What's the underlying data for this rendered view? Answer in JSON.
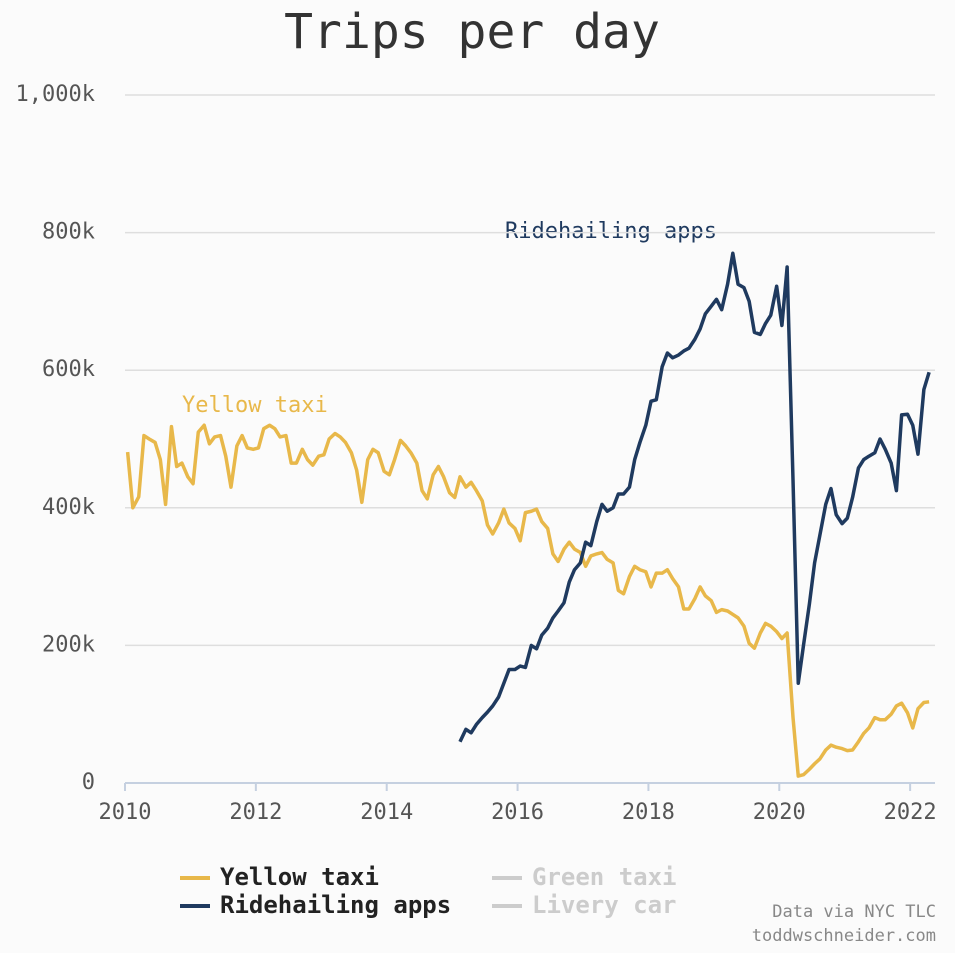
{
  "chart_data": {
    "type": "line",
    "title": "Trips per day",
    "x": [
      2010.04,
      2010.12,
      2010.21,
      2010.29,
      2010.37,
      2010.46,
      2010.54,
      2010.62,
      2010.71,
      2010.79,
      2010.87,
      2010.96,
      2011.04,
      2011.12,
      2011.21,
      2011.29,
      2011.37,
      2011.46,
      2011.54,
      2011.62,
      2011.71,
      2011.79,
      2011.87,
      2011.96,
      2012.04,
      2012.12,
      2012.21,
      2012.29,
      2012.37,
      2012.46,
      2012.54,
      2012.62,
      2012.71,
      2012.79,
      2012.87,
      2012.96,
      2013.04,
      2013.12,
      2013.21,
      2013.29,
      2013.37,
      2013.46,
      2013.54,
      2013.62,
      2013.71,
      2013.79,
      2013.87,
      2013.96,
      2014.04,
      2014.12,
      2014.21,
      2014.29,
      2014.37,
      2014.46,
      2014.54,
      2014.62,
      2014.71,
      2014.79,
      2014.87,
      2014.96,
      2015.04,
      2015.12,
      2015.21,
      2015.29,
      2015.37,
      2015.46,
      2015.54,
      2015.62,
      2015.71,
      2015.79,
      2015.87,
      2015.96,
      2016.04,
      2016.12,
      2016.21,
      2016.29,
      2016.37,
      2016.46,
      2016.54,
      2016.62,
      2016.71,
      2016.79,
      2016.87,
      2016.96,
      2017.04,
      2017.12,
      2017.21,
      2017.29,
      2017.37,
      2017.46,
      2017.54,
      2017.62,
      2017.71,
      2017.79,
      2017.87,
      2017.96,
      2018.04,
      2018.12,
      2018.21,
      2018.29,
      2018.37,
      2018.46,
      2018.54,
      2018.62,
      2018.71,
      2018.79,
      2018.87,
      2018.96,
      2019.04,
      2019.12,
      2019.21,
      2019.29,
      2019.37,
      2019.46,
      2019.54,
      2019.62,
      2019.71,
      2019.79,
      2019.87,
      2019.96,
      2020.04,
      2020.12,
      2020.21,
      2020.29,
      2020.37,
      2020.46,
      2020.54,
      2020.62,
      2020.71,
      2020.79,
      2020.87,
      2020.96,
      2021.04,
      2021.12,
      2021.21,
      2021.29,
      2021.37,
      2021.46,
      2021.54,
      2021.62,
      2021.71,
      2021.79,
      2021.87,
      2021.96,
      2022.04,
      2022.12,
      2022.21,
      2022.29
    ],
    "series": [
      {
        "name": "Yellow taxi",
        "color": "#e8b84a",
        "values": [
          481,
          400,
          416,
          505,
          500,
          495,
          470,
          405,
          518,
          460,
          465,
          445,
          435,
          510,
          520,
          493,
          503,
          505,
          475,
          430,
          490,
          505,
          487,
          485,
          487,
          515,
          520,
          515,
          503,
          505,
          465,
          465,
          485,
          470,
          462,
          475,
          477,
          500,
          508,
          503,
          495,
          480,
          455,
          408,
          470,
          485,
          480,
          453,
          448,
          470,
          498,
          490,
          480,
          465,
          425,
          413,
          448,
          460,
          445,
          422,
          415,
          445,
          430,
          437,
          425,
          410,
          375,
          362,
          378,
          398,
          378,
          370,
          352,
          393,
          395,
          398,
          380,
          370,
          333,
          322,
          340,
          350,
          340,
          335,
          315,
          330,
          333,
          335,
          325,
          320,
          280,
          275,
          300,
          315,
          310,
          307,
          285,
          305,
          305,
          310,
          297,
          285,
          253,
          253,
          268,
          285,
          272,
          265,
          248,
          252,
          250,
          245,
          240,
          228,
          203,
          196,
          218,
          232,
          228,
          220,
          210,
          218,
          95,
          10,
          12,
          20,
          28,
          35,
          48,
          55,
          52,
          50,
          47,
          48,
          60,
          72,
          80,
          95,
          92,
          92,
          100,
          112,
          116,
          102,
          80,
          108,
          117,
          118
        ]
      },
      {
        "name": "Ridehailing apps",
        "color": "#1f3a5f",
        "values": [
          null,
          null,
          null,
          null,
          null,
          null,
          null,
          null,
          null,
          null,
          null,
          null,
          null,
          null,
          null,
          null,
          null,
          null,
          null,
          null,
          null,
          null,
          null,
          null,
          null,
          null,
          null,
          null,
          null,
          null,
          null,
          null,
          null,
          null,
          null,
          null,
          null,
          null,
          null,
          null,
          null,
          null,
          null,
          null,
          null,
          null,
          null,
          null,
          null,
          null,
          null,
          null,
          null,
          null,
          null,
          null,
          null,
          null,
          null,
          null,
          null,
          60,
          78,
          73,
          85,
          95,
          103,
          112,
          125,
          145,
          165,
          165,
          170,
          168,
          200,
          195,
          215,
          225,
          240,
          250,
          262,
          292,
          310,
          320,
          350,
          345,
          380,
          405,
          395,
          400,
          420,
          420,
          430,
          470,
          495,
          520,
          555,
          557,
          605,
          625,
          618,
          622,
          628,
          632,
          645,
          660,
          682,
          693,
          703,
          688,
          725,
          770,
          725,
          720,
          700,
          655,
          652,
          668,
          680,
          722,
          665,
          750,
          440,
          145,
          200,
          260,
          320,
          360,
          405,
          428,
          390,
          377,
          385,
          415,
          458,
          470,
          475,
          480,
          500,
          485,
          465,
          425,
          535,
          536,
          520,
          478,
          572,
          597
        ]
      }
    ],
    "inactive_series": [
      "Green taxi",
      "Livery car"
    ],
    "annotations": [
      "Yellow taxi",
      "Ridehailing apps"
    ],
    "source": [
      "Data via NYC TLC",
      "toddwschneider.com"
    ],
    "xlim": [
      2010,
      2022.38
    ],
    "xticks": [
      2010,
      2012,
      2014,
      2016,
      2018,
      2020,
      2022
    ],
    "ylim": [
      0,
      1000
    ],
    "yticks": [
      0,
      {
        "value": 200,
        "label": "200k"
      },
      {
        "value": 400,
        "label": "400k"
      },
      {
        "value": 600,
        "label": "600k"
      },
      {
        "value": 800,
        "label": "800k"
      },
      {
        "value": 1000,
        "label": "1,000k"
      }
    ],
    "grid": true
  }
}
